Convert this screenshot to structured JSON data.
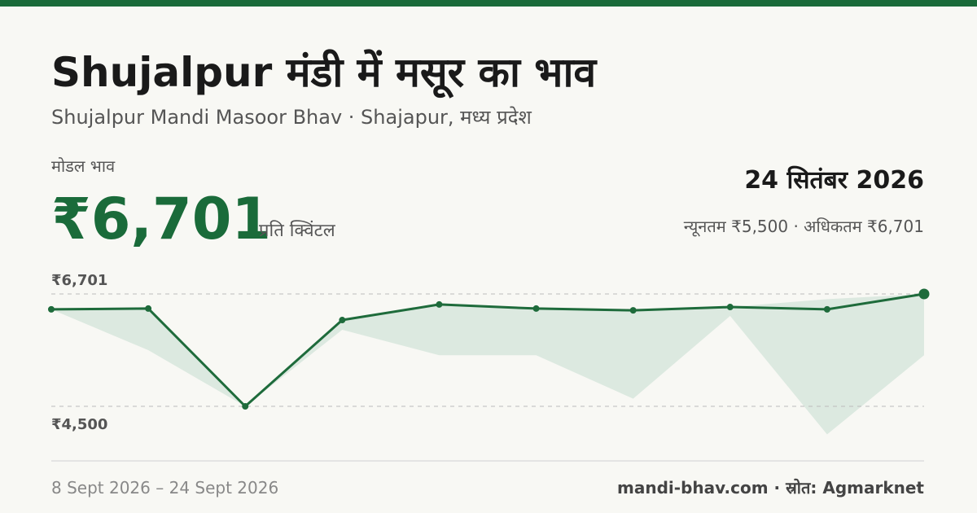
{
  "header": {
    "title": "Shujalpur मंडी में मसूर का भाव",
    "subtitle": "Shujalpur Mandi Masoor Bhav · Shajapur, मध्य प्रदेश",
    "price_label": "मोडल भाव",
    "price": "₹6,701",
    "unit": "प्रति क्विंटल",
    "date": "24 सितंबर 2026",
    "range": "न्यूनतम ₹5,500 · अधिकतम ₹6,701"
  },
  "chart_data": {
    "type": "line",
    "categories": [
      null,
      null,
      null,
      null,
      null,
      null,
      null,
      null,
      null,
      null
    ],
    "values": [
      6400,
      6415,
      4500,
      6190,
      6495,
      6415,
      6380,
      6445,
      6400,
      6701
    ],
    "color": "#1e6b3b",
    "band": {
      "min": [
        6400,
        5600,
        4500,
        6000,
        5500,
        5500,
        4650,
        6270,
        3950,
        5500
      ],
      "max": [
        6400,
        6415,
        4500,
        6190,
        6495,
        6415,
        6380,
        6445,
        6600,
        6701
      ],
      "color": "#dce9e0"
    },
    "ylim": [
      4500,
      6701
    ],
    "yticks": [
      {
        "value": 6701,
        "label": "₹6,701"
      },
      {
        "value": 4500,
        "label": "₹4,500"
      }
    ],
    "grid": true
  },
  "footer": {
    "range": "8 Sept 2026 – 24 Sept 2026",
    "source": "mandi-bhav.com · स्रोत: Agmarknet"
  }
}
